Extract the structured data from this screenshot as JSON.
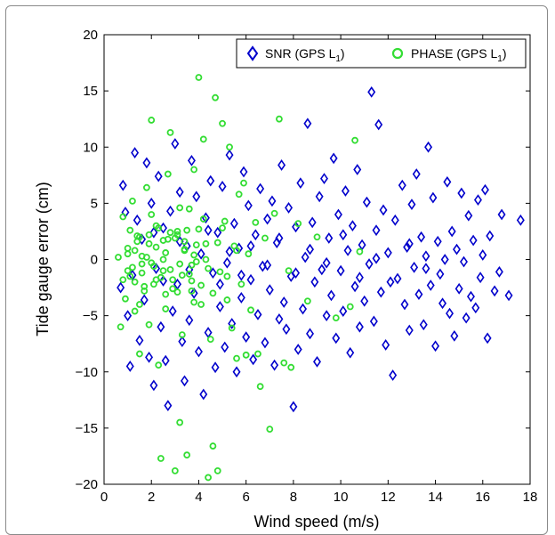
{
  "chart_data": {
    "type": "scatter",
    "title": "",
    "xlabel": "Wind speed (m/s)",
    "ylabel": "Tide gauge error (cm)",
    "xlim": [
      0,
      18
    ],
    "ylim": [
      -20,
      20
    ],
    "xticks": [
      "0",
      "2",
      "4",
      "6",
      "8",
      "10",
      "12",
      "14",
      "16",
      "18"
    ],
    "yticks": [
      "20",
      "15",
      "10",
      "5",
      "0",
      "−5",
      "−10",
      "−15",
      "−20"
    ],
    "grid": false,
    "legend_position": "top-right",
    "series": [
      {
        "name": "SNR (GPS L",
        "name_subscript": "1",
        "name_suffix": ")",
        "marker": "diamond",
        "color": "#0000cc",
        "points": [
          [
            0.7,
            -2.5
          ],
          [
            0.8,
            6.6
          ],
          [
            0.9,
            4.2
          ],
          [
            1.0,
            -5.0
          ],
          [
            1.1,
            -9.5
          ],
          [
            1.2,
            -1.4
          ],
          [
            1.3,
            9.5
          ],
          [
            1.4,
            3.5
          ],
          [
            1.5,
            -7.2
          ],
          [
            1.6,
            1.8
          ],
          [
            1.7,
            -3.6
          ],
          [
            1.8,
            8.6
          ],
          [
            1.9,
            -8.7
          ],
          [
            2.0,
            5.0
          ],
          [
            2.1,
            -11.2
          ],
          [
            2.2,
            -0.8
          ],
          [
            2.3,
            7.4
          ],
          [
            2.4,
            -6.0
          ],
          [
            2.5,
            2.8
          ],
          [
            2.6,
            -9.0
          ],
          [
            2.7,
            -13.0
          ],
          [
            2.8,
            4.3
          ],
          [
            2.9,
            -4.6
          ],
          [
            3.0,
            10.3
          ],
          [
            3.1,
            -2.2
          ],
          [
            3.2,
            6.0
          ],
          [
            3.3,
            -7.3
          ],
          [
            3.4,
            -10.8
          ],
          [
            3.5,
            1.2
          ],
          [
            3.6,
            -5.4
          ],
          [
            3.7,
            8.8
          ],
          [
            3.8,
            -3.0
          ],
          [
            3.9,
            5.6
          ],
          [
            4.0,
            -8.2
          ],
          [
            4.1,
            0.5
          ],
          [
            4.2,
            -12.0
          ],
          [
            4.3,
            3.7
          ],
          [
            4.4,
            -6.5
          ],
          [
            4.5,
            7.0
          ],
          [
            4.6,
            -1.2
          ],
          [
            4.7,
            -9.6
          ],
          [
            4.8,
            2.4
          ],
          [
            4.9,
            -4.2
          ],
          [
            5.0,
            6.5
          ],
          [
            5.1,
            -7.8
          ],
          [
            5.2,
            -0.3
          ],
          [
            5.3,
            9.3
          ],
          [
            5.4,
            -5.7
          ],
          [
            5.5,
            3.2
          ],
          [
            5.6,
            -10.0
          ],
          [
            5.7,
            1.0
          ],
          [
            5.8,
            -3.4
          ],
          [
            5.9,
            7.8
          ],
          [
            6.0,
            -6.9
          ],
          [
            6.1,
            4.8
          ],
          [
            6.2,
            -1.8
          ],
          [
            6.3,
            -8.9
          ],
          [
            6.4,
            2.2
          ],
          [
            6.5,
            -4.9
          ],
          [
            6.6,
            6.3
          ],
          [
            6.7,
            -0.6
          ],
          [
            6.8,
            -7.4
          ],
          [
            6.9,
            3.6
          ],
          [
            7.0,
            -2.7
          ],
          [
            7.1,
            5.2
          ],
          [
            7.2,
            -9.4
          ],
          [
            7.3,
            1.5
          ],
          [
            7.4,
            -5.3
          ],
          [
            7.5,
            8.4
          ],
          [
            7.6,
            -3.8
          ],
          [
            7.7,
            -6.2
          ],
          [
            7.8,
            4.6
          ],
          [
            7.9,
            -1.5
          ],
          [
            8.0,
            -13.1
          ],
          [
            8.1,
            2.9
          ],
          [
            8.2,
            -8.0
          ],
          [
            8.3,
            6.8
          ],
          [
            8.4,
            -4.4
          ],
          [
            8.5,
            0.2
          ],
          [
            8.6,
            12.1
          ],
          [
            8.7,
            -6.6
          ],
          [
            8.8,
            3.3
          ],
          [
            8.9,
            -2.0
          ],
          [
            9.0,
            -9.1
          ],
          [
            9.1,
            5.6
          ],
          [
            9.2,
            -0.9
          ],
          [
            9.3,
            7.2
          ],
          [
            9.4,
            -5.0
          ],
          [
            9.5,
            1.9
          ],
          [
            9.6,
            -3.2
          ],
          [
            9.7,
            9.0
          ],
          [
            9.8,
            -7.0
          ],
          [
            9.9,
            4.0
          ],
          [
            10.0,
            -1.0
          ],
          [
            10.1,
            -4.6
          ],
          [
            10.2,
            6.1
          ],
          [
            10.3,
            0.8
          ],
          [
            10.4,
            -8.3
          ],
          [
            10.5,
            3.0
          ],
          [
            10.6,
            -2.4
          ],
          [
            10.7,
            8.0
          ],
          [
            10.8,
            -6.0
          ],
          [
            10.9,
            1.3
          ],
          [
            11.0,
            -3.7
          ],
          [
            11.1,
            5.1
          ],
          [
            11.2,
            -0.4
          ],
          [
            11.3,
            14.9
          ],
          [
            11.4,
            -5.5
          ],
          [
            11.5,
            2.6
          ],
          [
            11.6,
            12.0
          ],
          [
            11.7,
            -2.9
          ],
          [
            11.8,
            4.4
          ],
          [
            11.9,
            -7.6
          ],
          [
            12.0,
            0.6
          ],
          [
            12.2,
            -10.3
          ],
          [
            12.3,
            3.5
          ],
          [
            12.4,
            -1.7
          ],
          [
            12.6,
            6.6
          ],
          [
            12.7,
            -4.0
          ],
          [
            12.8,
            1.1
          ],
          [
            12.9,
            -6.3
          ],
          [
            13.0,
            4.9
          ],
          [
            13.1,
            -0.7
          ],
          [
            13.2,
            7.6
          ],
          [
            13.3,
            -3.1
          ],
          [
            13.4,
            2.0
          ],
          [
            13.5,
            -5.8
          ],
          [
            13.6,
            0.3
          ],
          [
            13.7,
            10.0
          ],
          [
            13.8,
            -2.3
          ],
          [
            13.9,
            5.5
          ],
          [
            14.0,
            -7.7
          ],
          [
            14.1,
            1.6
          ],
          [
            14.2,
            -1.3
          ],
          [
            14.3,
            -3.9
          ],
          [
            14.4,
            0.0
          ],
          [
            14.5,
            6.9
          ],
          [
            14.6,
            -4.8
          ],
          [
            14.7,
            2.5
          ],
          [
            14.8,
            -6.8
          ],
          [
            14.9,
            0.9
          ],
          [
            15.0,
            -2.6
          ],
          [
            15.1,
            5.9
          ],
          [
            15.2,
            -0.2
          ],
          [
            15.3,
            -5.2
          ],
          [
            15.4,
            3.9
          ],
          [
            15.5,
            -3.3
          ],
          [
            15.6,
            1.7
          ],
          [
            15.7,
            -4.3
          ],
          [
            15.8,
            5.3
          ],
          [
            15.9,
            -1.6
          ],
          [
            16.0,
            0.4
          ],
          [
            16.1,
            6.2
          ],
          [
            16.2,
            -7.0
          ],
          [
            16.3,
            2.1
          ],
          [
            16.5,
            -2.8
          ],
          [
            16.7,
            -1.1
          ],
          [
            16.8,
            4.0
          ],
          [
            17.1,
            -3.2
          ],
          [
            17.6,
            3.5
          ],
          [
            2.1,
            2.4
          ],
          [
            2.5,
            -1.9
          ],
          [
            3.2,
            1.6
          ],
          [
            3.6,
            -0.9
          ],
          [
            4.4,
            2.6
          ],
          [
            4.9,
            -2.2
          ],
          [
            5.3,
            0.7
          ],
          [
            5.8,
            -1.4
          ],
          [
            6.2,
            1.2
          ],
          [
            6.9,
            -0.5
          ],
          [
            7.4,
            1.9
          ],
          [
            8.1,
            -1.2
          ],
          [
            8.7,
            0.9
          ],
          [
            9.4,
            -0.3
          ],
          [
            10.1,
            2.2
          ],
          [
            10.8,
            -1.6
          ],
          [
            11.5,
            0.1
          ],
          [
            12.1,
            -2.0
          ],
          [
            12.9,
            1.4
          ],
          [
            13.6,
            -0.8
          ]
        ]
      },
      {
        "name": "PHASE (GPS L",
        "name_subscript": "1",
        "name_suffix": ")",
        "marker": "circle",
        "color": "#33dd33",
        "points": [
          [
            0.7,
            -6.0
          ],
          [
            0.8,
            3.8
          ],
          [
            0.9,
            -3.5
          ],
          [
            1.0,
            1.0
          ],
          [
            1.1,
            -1.5
          ],
          [
            1.2,
            5.2
          ],
          [
            1.3,
            -4.6
          ],
          [
            1.4,
            2.1
          ],
          [
            1.5,
            -8.4
          ],
          [
            1.6,
            0.3
          ],
          [
            1.7,
            -2.4
          ],
          [
            1.8,
            6.4
          ],
          [
            1.9,
            -5.8
          ],
          [
            2.0,
            12.4
          ],
          [
            2.1,
            -0.6
          ],
          [
            2.2,
            3.0
          ],
          [
            2.3,
            -9.4
          ],
          [
            2.4,
            -17.7
          ],
          [
            2.5,
            1.7
          ],
          [
            2.6,
            -3.1
          ],
          [
            2.7,
            7.6
          ],
          [
            2.8,
            11.3
          ],
          [
            2.9,
            -1.8
          ],
          [
            3.0,
            -18.8
          ],
          [
            3.1,
            2.5
          ],
          [
            3.2,
            -14.5
          ],
          [
            3.3,
            -6.7
          ],
          [
            3.4,
            0.8
          ],
          [
            3.5,
            -17.4
          ],
          [
            3.6,
            4.5
          ],
          [
            3.7,
            -2.8
          ],
          [
            3.8,
            8.0
          ],
          [
            3.9,
            -0.2
          ],
          [
            4.0,
            16.2
          ],
          [
            4.1,
            -4.0
          ],
          [
            4.2,
            10.7
          ],
          [
            4.3,
            1.4
          ],
          [
            4.4,
            -19.4
          ],
          [
            4.5,
            -7.1
          ],
          [
            4.6,
            -16.6
          ],
          [
            4.7,
            14.4
          ],
          [
            4.8,
            -18.8
          ],
          [
            4.9,
            -1.1
          ],
          [
            5.0,
            12.1
          ],
          [
            5.1,
            3.4
          ],
          [
            5.2,
            -3.6
          ],
          [
            5.3,
            10.0
          ],
          [
            5.4,
            -6.1
          ],
          [
            5.5,
            1.2
          ],
          [
            5.6,
            -8.8
          ],
          [
            5.7,
            5.8
          ],
          [
            5.8,
            -2.2
          ],
          [
            5.9,
            6.8
          ],
          [
            6.0,
            -8.5
          ],
          [
            6.1,
            0.5
          ],
          [
            6.2,
            -4.5
          ],
          [
            6.4,
            3.3
          ],
          [
            6.5,
            -8.4
          ],
          [
            6.6,
            -11.3
          ],
          [
            6.8,
            1.9
          ],
          [
            7.0,
            -15.1
          ],
          [
            7.2,
            4.1
          ],
          [
            7.4,
            12.5
          ],
          [
            7.6,
            -9.2
          ],
          [
            7.8,
            -1.0
          ],
          [
            7.9,
            -9.6
          ],
          [
            8.2,
            3.2
          ],
          [
            8.6,
            -3.7
          ],
          [
            9.0,
            2.0
          ],
          [
            9.8,
            -5.2
          ],
          [
            10.4,
            -4.2
          ],
          [
            10.6,
            10.6
          ],
          [
            10.8,
            0.7
          ],
          [
            1.0,
            0.5
          ],
          [
            1.2,
            -0.7
          ],
          [
            1.4,
            1.6
          ],
          [
            1.6,
            -1.2
          ],
          [
            1.8,
            0.2
          ],
          [
            2.0,
            -0.3
          ],
          [
            2.2,
            1.1
          ],
          [
            2.4,
            -1.6
          ],
          [
            2.6,
            0.6
          ],
          [
            2.8,
            -0.9
          ],
          [
            3.0,
            1.9
          ],
          [
            3.2,
            -0.4
          ],
          [
            3.4,
            0.9
          ],
          [
            3.6,
            -1.3
          ],
          [
            3.8,
            0.4
          ],
          [
            1.1,
            2.6
          ],
          [
            1.3,
            -2.0
          ],
          [
            1.5,
            2.0
          ],
          [
            1.7,
            -2.8
          ],
          [
            1.9,
            1.4
          ],
          [
            2.1,
            -2.2
          ],
          [
            2.3,
            2.8
          ],
          [
            2.5,
            -1.0
          ],
          [
            2.7,
            1.8
          ],
          [
            2.9,
            -2.6
          ],
          [
            3.1,
            2.2
          ],
          [
            3.3,
            -1.4
          ],
          [
            3.5,
            2.6
          ],
          [
            3.7,
            -0.5
          ],
          [
            3.9,
            1.3
          ],
          [
            4.1,
            -2.3
          ],
          [
            4.3,
            0.0
          ],
          [
            1.0,
            -1.0
          ],
          [
            1.3,
            0.8
          ],
          [
            1.6,
            -0.4
          ],
          [
            1.9,
            2.2
          ],
          [
            2.2,
            -1.8
          ],
          [
            2.5,
            0.0
          ],
          [
            2.8,
            2.4
          ],
          [
            3.1,
            -2.9
          ],
          [
            3.4,
            1.6
          ],
          [
            3.7,
            -1.9
          ],
          [
            4.0,
            2.7
          ],
          [
            4.4,
            -0.8
          ],
          [
            4.8,
            1.5
          ],
          [
            5.2,
            -1.5
          ],
          [
            5.6,
            0.8
          ],
          [
            0.6,
            0.2
          ],
          [
            0.8,
            -1.8
          ],
          [
            1.5,
            -4.0
          ],
          [
            2.0,
            4.0
          ],
          [
            2.6,
            -4.4
          ],
          [
            3.2,
            4.6
          ],
          [
            3.8,
            -3.8
          ],
          [
            4.2,
            3.6
          ],
          [
            4.6,
            -3.0
          ],
          [
            5.0,
            2.8
          ]
        ]
      }
    ]
  }
}
